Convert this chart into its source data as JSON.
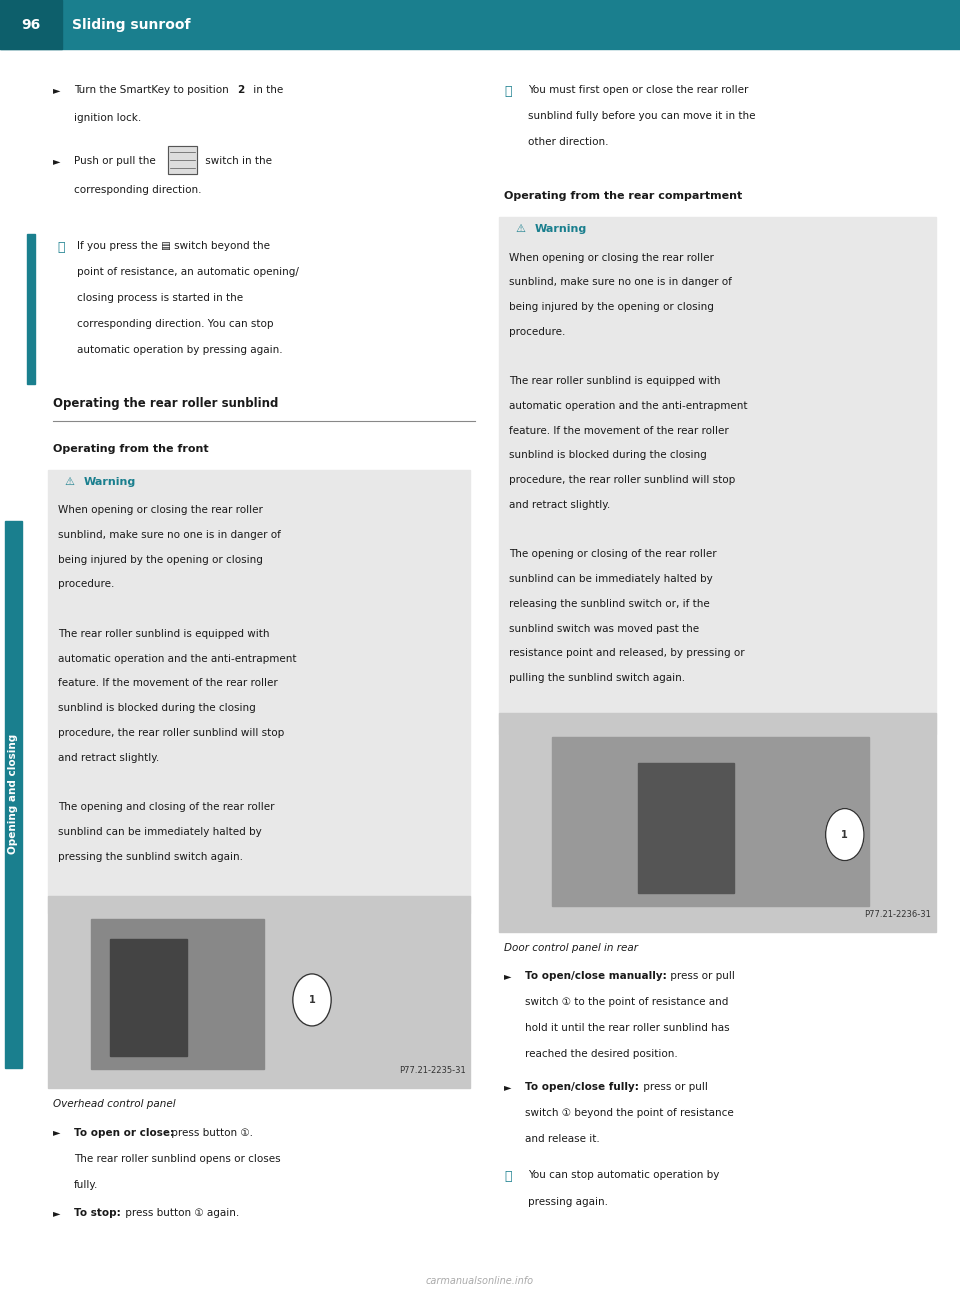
{
  "page_bg": "#ffffff",
  "header_bg": "#1a7f8e",
  "header_text_color": "#ffffff",
  "header_number": "96",
  "header_title": "Sliding sunroof",
  "sidebar_color": "#1a7f8e",
  "teal_color": "#1a7f8e",
  "warning_bg": "#e8e8e8",
  "warning_color": "#1a7f8e",
  "body_text_color": "#1a1a1a",
  "sidebar_label": "Opening and closing",
  "bullet_char": "►",
  "info_char": "ⓘ",
  "warning_char": "⚠",
  "section_title": "Operating the rear roller sunblind",
  "subsection_left": "Operating from the front",
  "subsection_right": "Operating from the rear compartment",
  "left_img_caption": "Overhead control panel",
  "right_img_caption": "Door control panel in rear",
  "footer_text": "carmanualsonline.info"
}
